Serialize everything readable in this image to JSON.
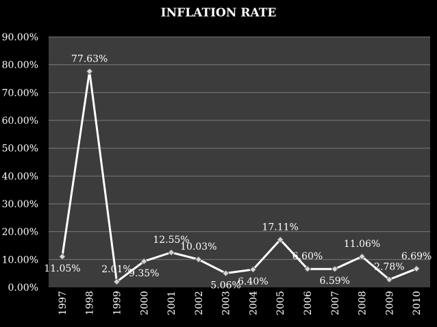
{
  "chart_data": {
    "type": "line",
    "title": "INFLATION RATE",
    "categories": [
      "1997",
      "1998",
      "1999",
      "2000",
      "2001",
      "2002",
      "2003",
      "2004",
      "2005",
      "2006",
      "2007",
      "2008",
      "2009",
      "2010"
    ],
    "series": [
      {
        "values": [
          11.05,
          77.63,
          2.01,
          9.35,
          12.55,
          10.03,
          5.06,
          6.4,
          17.11,
          6.6,
          6.59,
          11.06,
          2.78,
          6.69
        ],
        "labels": [
          "11.05%",
          "77.63%",
          "2.01%",
          "9.35%",
          "12.55%",
          "10.03%",
          "5.06%",
          "6.40%",
          "17.11%",
          "6.60%",
          "6.59%",
          "11.06%",
          "2.78%",
          "6.69%"
        ]
      }
    ],
    "ylim": [
      0,
      90
    ],
    "yticks": [
      "0.00%",
      "10.00%",
      "20.00%",
      "30.00%",
      "40.00%",
      "50.00%",
      "60.00%",
      "70.00%",
      "80.00%",
      "90.00%"
    ],
    "grid": true,
    "legend": "none",
    "colors": {
      "background": "#000000",
      "plot_area": "#3c3c3c",
      "line": "#ffffff",
      "grid": "#7a7a7a",
      "text": "#ffffff"
    }
  }
}
